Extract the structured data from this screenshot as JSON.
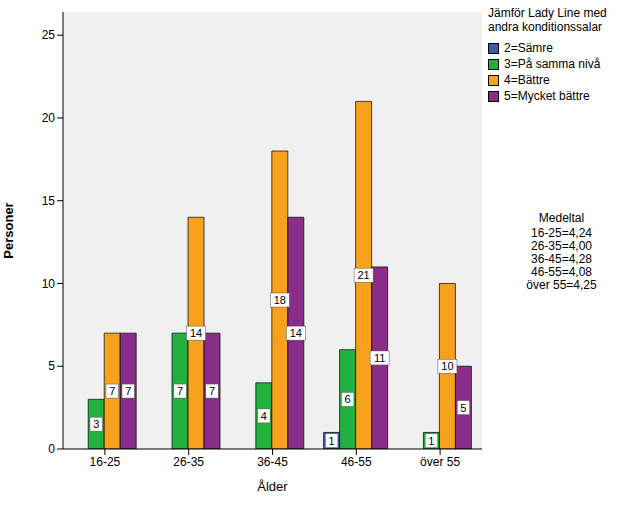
{
  "chart_data": {
    "type": "bar",
    "x_label": "Ålder",
    "y_label": "Personer",
    "legend_title": "Jämför Lady Line med andra konditionssalar",
    "categories": [
      "16-25",
      "26-35",
      "36-45",
      "46-55",
      "över 55"
    ],
    "series": [
      {
        "name": "2=Sämre",
        "color": "#3e58ac",
        "values": [
          null,
          null,
          null,
          1,
          null
        ]
      },
      {
        "name": "3=På samma nivå",
        "color": "#22b040",
        "values": [
          3,
          7,
          4,
          6,
          1
        ]
      },
      {
        "name": "4=Bättre",
        "color": "#f8a11d",
        "values": [
          7,
          14,
          18,
          21,
          10
        ]
      },
      {
        "name": "5=Mycket bättre",
        "color": "#8a2c8a",
        "values": [
          7,
          7,
          14,
          11,
          5
        ]
      }
    ],
    "ylim": [
      0,
      26.4
    ],
    "yticks": [
      0,
      5,
      10,
      15,
      20,
      25
    ],
    "grid": false,
    "data_labels": true,
    "legend": "right",
    "annotations": [
      "Medeltal",
      "16-25=4,24",
      "26-35=4,00",
      "36-45=4,28",
      "46-55=4,08",
      "över 55=4,25"
    ]
  }
}
